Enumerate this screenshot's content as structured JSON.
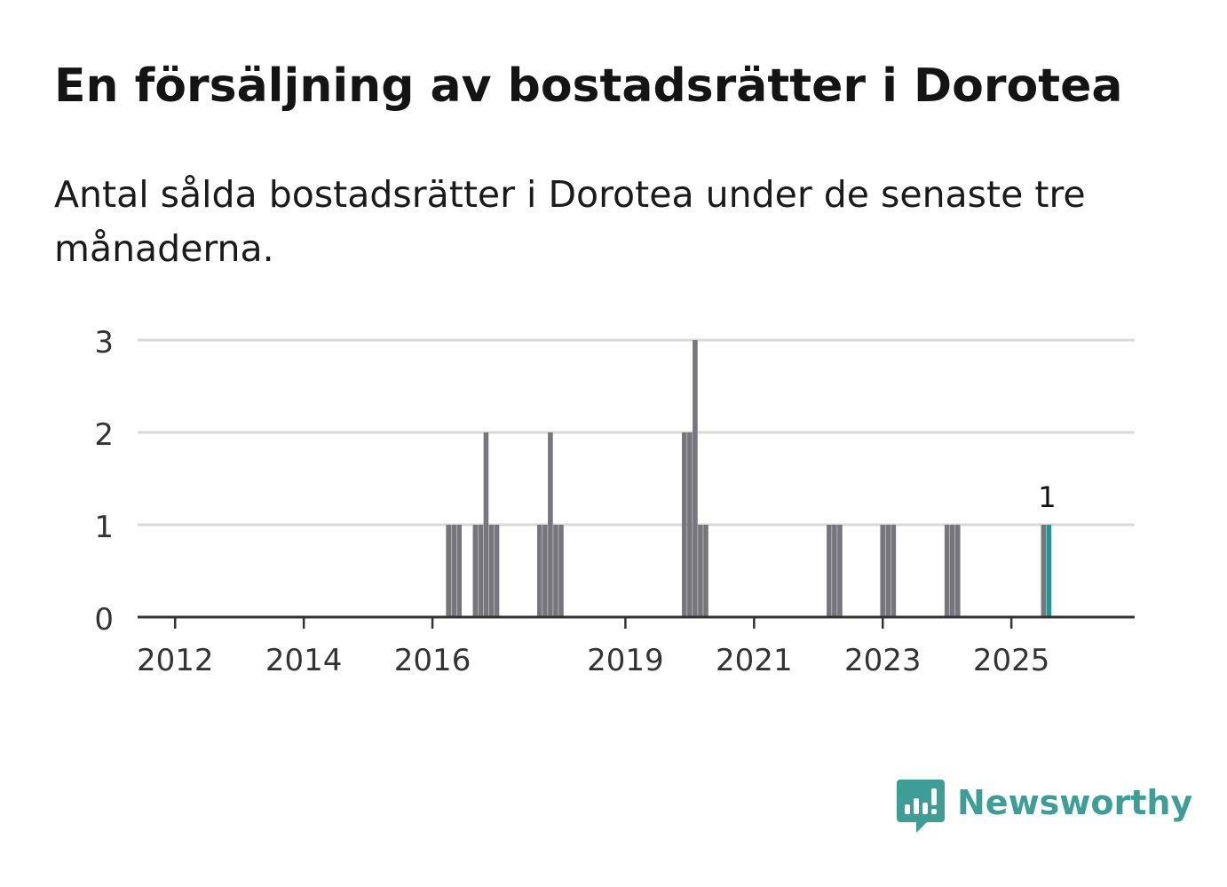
{
  "title": "En försäljning av bostadsrätter i Dorotea",
  "subtitle": "Antal sålda bostadsrätter i Dorotea under de senaste tre månaderna.",
  "brand": {
    "name": "Newsworthy",
    "icon": "newsworthy-logo-icon",
    "color": "#3e9e96"
  },
  "colors": {
    "bar": "#76767c",
    "highlight": "#159a99",
    "grid": "#d9d9d9",
    "axis": "#333333",
    "tick_text": "#333333"
  },
  "chart_data": {
    "type": "bar",
    "title": "En försäljning av bostadsrätter i Dorotea",
    "subtitle": "Antal sålda bostadsrätter i Dorotea under de senaste tre månaderna.",
    "xlabel": "",
    "ylabel": "",
    "x_axis": "monthly, rolling three-month window",
    "xlim": [
      "2011-06",
      "2026-12"
    ],
    "ylim": [
      0,
      3
    ],
    "y_ticks": [
      "0",
      "1",
      "2",
      "3"
    ],
    "x_ticks": [
      "2012",
      "2014",
      "2016",
      "2019",
      "2021",
      "2023",
      "2025"
    ],
    "grid": true,
    "legend": "none",
    "series": [
      {
        "points": [
          {
            "x": "2016-04",
            "y": 1
          },
          {
            "x": "2016-05",
            "y": 1
          },
          {
            "x": "2016-06",
            "y": 1
          },
          {
            "x": "2016-09",
            "y": 1
          },
          {
            "x": "2016-10",
            "y": 1
          },
          {
            "x": "2016-11",
            "y": 2
          },
          {
            "x": "2016-12",
            "y": 1
          },
          {
            "x": "2017-01",
            "y": 1
          },
          {
            "x": "2017-09",
            "y": 1
          },
          {
            "x": "2017-10",
            "y": 1
          },
          {
            "x": "2017-11",
            "y": 2
          },
          {
            "x": "2017-12",
            "y": 1
          },
          {
            "x": "2018-01",
            "y": 1
          },
          {
            "x": "2019-12",
            "y": 2
          },
          {
            "x": "2020-01",
            "y": 2
          },
          {
            "x": "2020-02",
            "y": 3
          },
          {
            "x": "2020-03",
            "y": 1
          },
          {
            "x": "2020-04",
            "y": 1
          },
          {
            "x": "2022-03",
            "y": 1
          },
          {
            "x": "2022-04",
            "y": 1
          },
          {
            "x": "2022-05",
            "y": 1
          },
          {
            "x": "2023-01",
            "y": 1
          },
          {
            "x": "2023-02",
            "y": 1
          },
          {
            "x": "2023-03",
            "y": 1
          },
          {
            "x": "2024-01",
            "y": 1
          },
          {
            "x": "2024-02",
            "y": 1
          },
          {
            "x": "2024-03",
            "y": 1
          },
          {
            "x": "2025-07",
            "y": 1
          },
          {
            "x": "2025-08",
            "y": 1
          }
        ]
      }
    ],
    "highlight": {
      "x": "2025-08",
      "y": 1,
      "label": "1"
    }
  }
}
